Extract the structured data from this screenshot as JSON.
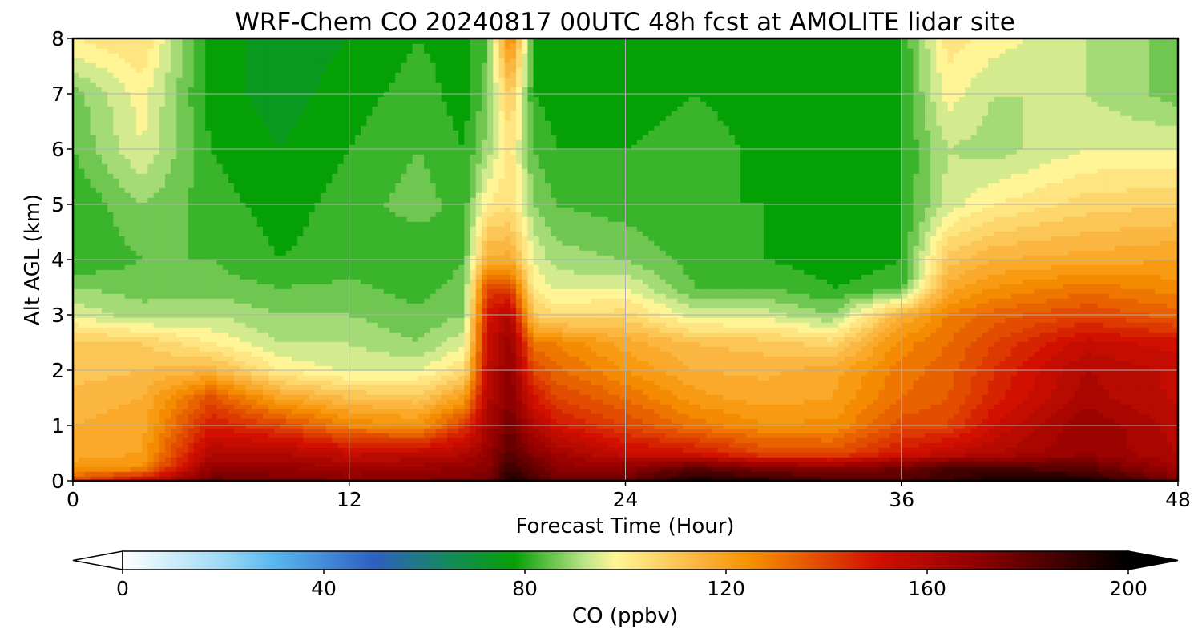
{
  "chart_data": {
    "type": "heatmap",
    "title": "WRF-Chem CO  20240817 00UTC 48h fcst at AMOLITE lidar site",
    "xlabel": "Forecast Time (Hour)",
    "ylabel": "Alt AGL (km)",
    "xlim": [
      0,
      48
    ],
    "ylim": [
      0,
      8
    ],
    "xticks": [
      "0",
      "12",
      "24",
      "36",
      "48"
    ],
    "yticks": [
      "0",
      "1",
      "2",
      "3",
      "4",
      "5",
      "6",
      "7",
      "8"
    ],
    "grid": true,
    "colorbar": {
      "label": "CO  (ppbv)",
      "range": [
        0,
        200
      ],
      "ticks": [
        "0",
        "40",
        "80",
        "120",
        "160",
        "200"
      ],
      "extend": "both",
      "stops": [
        {
          "value": 0,
          "color": "#ffffff"
        },
        {
          "value": 20,
          "color": "#9dd9f5"
        },
        {
          "value": 30,
          "color": "#58b8ef"
        },
        {
          "value": 50,
          "color": "#2e5fc2"
        },
        {
          "value": 65,
          "color": "#138a5a"
        },
        {
          "value": 78,
          "color": "#05a005"
        },
        {
          "value": 92,
          "color": "#bfe58a"
        },
        {
          "value": 98,
          "color": "#fff596"
        },
        {
          "value": 115,
          "color": "#fbb33c"
        },
        {
          "value": 125,
          "color": "#f69000"
        },
        {
          "value": 150,
          "color": "#d11000"
        },
        {
          "value": 170,
          "color": "#8f0000"
        },
        {
          "value": 200,
          "color": "#000000"
        }
      ]
    },
    "times": [
      0,
      3,
      6,
      9,
      12,
      15,
      17,
      18,
      19,
      20,
      21,
      24,
      27,
      30,
      33,
      36,
      38,
      40,
      44,
      48
    ],
    "heights": [
      0,
      0.25,
      0.5,
      1,
      1.5,
      2,
      2.5,
      3,
      3.5,
      4,
      5,
      6,
      7,
      8
    ],
    "values": [
      [
        140,
        155,
        178,
        176,
        172,
        172,
        176,
        176,
        195,
        186,
        180,
        180,
        196,
        192,
        186,
        184,
        188,
        196,
        196,
        176
      ],
      [
        122,
        125,
        168,
        168,
        164,
        166,
        168,
        170,
        188,
        180,
        170,
        168,
        180,
        172,
        170,
        176,
        184,
        184,
        180,
        164
      ],
      [
        118,
        120,
        160,
        160,
        155,
        156,
        160,
        168,
        182,
        172,
        165,
        154,
        150,
        140,
        138,
        150,
        156,
        160,
        168,
        160
      ],
      [
        116,
        118,
        148,
        140,
        128,
        124,
        142,
        162,
        176,
        160,
        150,
        140,
        130,
        125,
        125,
        138,
        140,
        152,
        168,
        158
      ],
      [
        114,
        116,
        138,
        120,
        112,
        110,
        122,
        158,
        172,
        150,
        140,
        132,
        122,
        118,
        120,
        132,
        136,
        146,
        162,
        155
      ],
      [
        110,
        112,
        115,
        100,
        95,
        96,
        104,
        155,
        170,
        140,
        133,
        124,
        116,
        115,
        118,
        130,
        134,
        144,
        160,
        155
      ],
      [
        110,
        108,
        100,
        92,
        92,
        88,
        95,
        152,
        168,
        130,
        128,
        118,
        112,
        110,
        106,
        126,
        132,
        140,
        154,
        150
      ],
      [
        95,
        90,
        92,
        88,
        88,
        85,
        88,
        150,
        160,
        110,
        104,
        106,
        94,
        94,
        88,
        116,
        128,
        134,
        140,
        134
      ],
      [
        88,
        86,
        86,
        84,
        85,
        82,
        86,
        140,
        140,
        100,
        95,
        96,
        84,
        84,
        80,
        82,
        118,
        124,
        130,
        126
      ],
      [
        80,
        84,
        84,
        80,
        82,
        80,
        84,
        118,
        118,
        96,
        90,
        88,
        82,
        80,
        78,
        80,
        110,
        116,
        118,
        120
      ],
      [
        80,
        88,
        82,
        78,
        82,
        86,
        82,
        100,
        104,
        88,
        84,
        82,
        80,
        80,
        78,
        80,
        94,
        100,
        106,
        108
      ],
      [
        84,
        96,
        80,
        76,
        80,
        84,
        80,
        90,
        102,
        84,
        80,
        80,
        84,
        78,
        76,
        80,
        92,
        90,
        96,
        96
      ],
      [
        86,
        98,
        78,
        74,
        78,
        82,
        78,
        86,
        110,
        80,
        78,
        76,
        80,
        76,
        76,
        80,
        98,
        92,
        92,
        86
      ],
      [
        100,
        104,
        78,
        74,
        76,
        80,
        78,
        84,
        128,
        80,
        76,
        76,
        78,
        76,
        76,
        80,
        102,
        98,
        92,
        86
      ]
    ]
  }
}
